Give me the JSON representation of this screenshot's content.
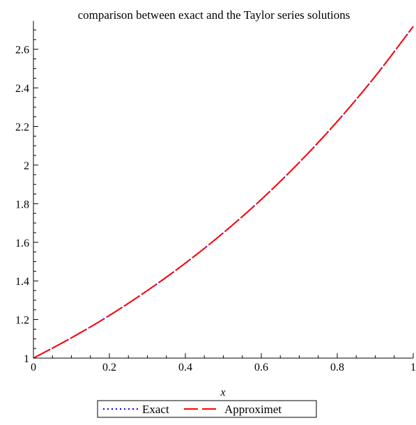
{
  "chart_data": {
    "type": "line",
    "title": "comparison between exact and the Taylor series solutions",
    "xlabel": "x",
    "ylabel": "",
    "xlim": [
      0,
      1
    ],
    "ylim": [
      1,
      2.718
    ],
    "x_ticks": [
      0,
      0.2,
      0.4,
      0.6,
      0.8,
      1
    ],
    "x_tick_labels": [
      "0",
      "0.2",
      "0.4",
      "0.6",
      "0.8",
      "1"
    ],
    "y_ticks": [
      1,
      1.2,
      1.4,
      1.6,
      1.8,
      2,
      2.2,
      2.4,
      2.6
    ],
    "y_tick_labels": [
      "1",
      "1.2",
      "1.4",
      "1.6",
      "1.8",
      "2",
      "2.2",
      "2.4",
      "2.6"
    ],
    "grid": false,
    "legend_position": "bottom",
    "series": [
      {
        "name": "Exact",
        "color": "#0000ff",
        "style": "dotted",
        "x": [
          0,
          0.1,
          0.2,
          0.3,
          0.4,
          0.5,
          0.6,
          0.7,
          0.8,
          0.9,
          1.0
        ],
        "y": [
          1.0,
          1.105,
          1.221,
          1.35,
          1.492,
          1.649,
          1.822,
          2.014,
          2.226,
          2.46,
          2.718
        ]
      },
      {
        "name": "Approximet",
        "color": "#ff0000",
        "style": "dashed",
        "x": [
          0,
          0.1,
          0.2,
          0.3,
          0.4,
          0.5,
          0.6,
          0.7,
          0.8,
          0.9,
          1.0
        ],
        "y": [
          1.0,
          1.105,
          1.221,
          1.35,
          1.492,
          1.649,
          1.822,
          2.014,
          2.226,
          2.46,
          2.718
        ]
      }
    ]
  }
}
